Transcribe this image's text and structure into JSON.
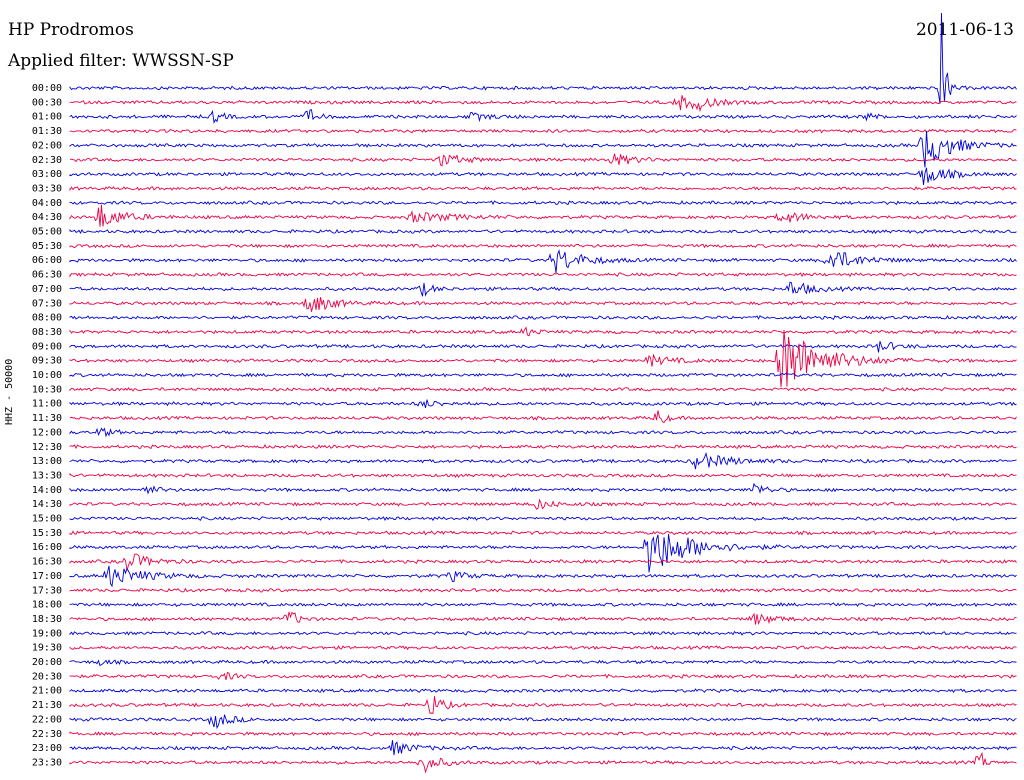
{
  "header": {
    "station": "HP Prodromos",
    "date": "2011-06-13",
    "filter": "Applied filter: WWSSN-SP"
  },
  "chart_data": {
    "type": "line",
    "title": "HP Prodromos",
    "ylabel": "HHZ - 50000",
    "colors": [
      "#0000dd",
      "#ee0044"
    ],
    "rows": [
      "00:00",
      "00:30",
      "01:00",
      "01:30",
      "02:00",
      "02:30",
      "03:00",
      "03:30",
      "04:00",
      "04:30",
      "05:00",
      "05:30",
      "06:00",
      "06:30",
      "07:00",
      "07:30",
      "08:00",
      "08:30",
      "09:00",
      "09:30",
      "10:00",
      "10:30",
      "11:00",
      "11:30",
      "12:00",
      "12:30",
      "13:00",
      "13:30",
      "14:00",
      "14:30",
      "15:00",
      "15:30",
      "16:00",
      "16:30",
      "17:00",
      "17:30",
      "18:00",
      "18:30",
      "19:00",
      "19:30",
      "20:00",
      "20:30",
      "21:00",
      "21:30",
      "22:00",
      "22:30",
      "23:00",
      "23:30"
    ],
    "events": [
      {
        "row": 0,
        "x": 0.92,
        "amp": 80,
        "w": 0.004
      },
      {
        "row": 1,
        "x": 0.64,
        "amp": 8,
        "w": 0.02
      },
      {
        "row": 1,
        "x": 0.66,
        "amp": 6,
        "w": 0.015
      },
      {
        "row": 2,
        "x": 0.15,
        "amp": 6,
        "w": 0.01
      },
      {
        "row": 2,
        "x": 0.25,
        "amp": 10,
        "w": 0.008
      },
      {
        "row": 2,
        "x": 0.42,
        "amp": 4,
        "w": 0.02
      },
      {
        "row": 2,
        "x": 0.84,
        "amp": 4,
        "w": 0.01
      },
      {
        "row": 4,
        "x": 0.9,
        "amp": 24,
        "w": 0.025
      },
      {
        "row": 5,
        "x": 0.39,
        "amp": 7,
        "w": 0.02
      },
      {
        "row": 5,
        "x": 0.57,
        "amp": 7,
        "w": 0.02
      },
      {
        "row": 6,
        "x": 0.9,
        "amp": 12,
        "w": 0.02
      },
      {
        "row": 9,
        "x": 0.03,
        "amp": 14,
        "w": 0.02
      },
      {
        "row": 9,
        "x": 0.36,
        "amp": 5,
        "w": 0.04
      },
      {
        "row": 9,
        "x": 0.75,
        "amp": 7,
        "w": 0.02
      },
      {
        "row": 12,
        "x": 0.51,
        "amp": 14,
        "w": 0.025
      },
      {
        "row": 12,
        "x": 0.8,
        "amp": 13,
        "w": 0.025
      },
      {
        "row": 14,
        "x": 0.37,
        "amp": 8,
        "w": 0.01
      },
      {
        "row": 14,
        "x": 0.76,
        "amp": 8,
        "w": 0.02
      },
      {
        "row": 15,
        "x": 0.25,
        "amp": 12,
        "w": 0.02
      },
      {
        "row": 17,
        "x": 0.48,
        "amp": 5,
        "w": 0.01
      },
      {
        "row": 18,
        "x": 0.85,
        "amp": 7,
        "w": 0.015
      },
      {
        "row": 19,
        "x": 0.61,
        "amp": 6,
        "w": 0.02
      },
      {
        "row": 19,
        "x": 0.75,
        "amp": 40,
        "w": 0.035
      },
      {
        "row": 22,
        "x": 0.37,
        "amp": 5,
        "w": 0.015
      },
      {
        "row": 23,
        "x": 0.62,
        "amp": 12,
        "w": 0.006
      },
      {
        "row": 24,
        "x": 0.03,
        "amp": 6,
        "w": 0.01
      },
      {
        "row": 26,
        "x": 0.66,
        "amp": 9,
        "w": 0.03
      },
      {
        "row": 28,
        "x": 0.08,
        "amp": 5,
        "w": 0.01
      },
      {
        "row": 28,
        "x": 0.72,
        "amp": 8,
        "w": 0.012
      },
      {
        "row": 29,
        "x": 0.49,
        "amp": 6,
        "w": 0.015
      },
      {
        "row": 32,
        "x": 0.61,
        "amp": 30,
        "w": 0.035
      },
      {
        "row": 33,
        "x": 0.06,
        "amp": 10,
        "w": 0.02
      },
      {
        "row": 34,
        "x": 0.04,
        "amp": 12,
        "w": 0.03
      },
      {
        "row": 34,
        "x": 0.4,
        "amp": 6,
        "w": 0.015
      },
      {
        "row": 37,
        "x": 0.23,
        "amp": 12,
        "w": 0.008
      },
      {
        "row": 37,
        "x": 0.72,
        "amp": 6,
        "w": 0.02
      },
      {
        "row": 40,
        "x": 0.03,
        "amp": 4,
        "w": 0.008
      },
      {
        "row": 41,
        "x": 0.16,
        "amp": 5,
        "w": 0.01
      },
      {
        "row": 43,
        "x": 0.38,
        "amp": 14,
        "w": 0.01
      },
      {
        "row": 44,
        "x": 0.15,
        "amp": 10,
        "w": 0.015
      },
      {
        "row": 46,
        "x": 0.34,
        "amp": 7,
        "w": 0.02
      },
      {
        "row": 47,
        "x": 0.37,
        "amp": 12,
        "w": 0.015
      },
      {
        "row": 47,
        "x": 0.96,
        "amp": 16,
        "w": 0.004
      }
    ]
  }
}
